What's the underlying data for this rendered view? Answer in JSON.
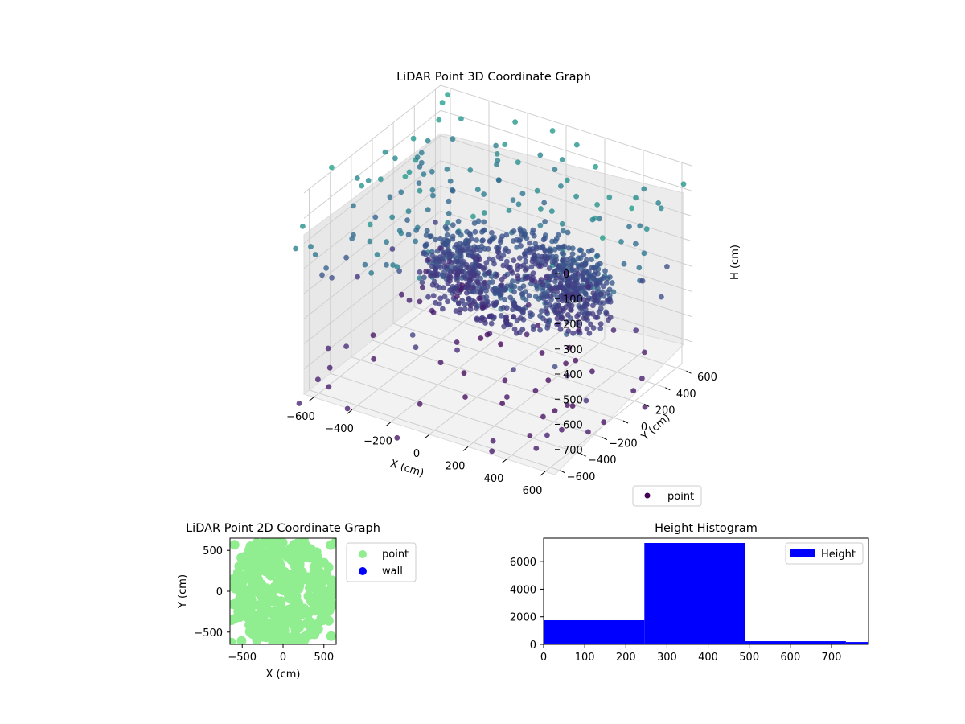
{
  "figure": {
    "chart3d_title": "LiDAR Point 3D Coordinate Graph",
    "chart2d_title": "LiDAR Point 2D Coordinate Graph",
    "hist_title": "Height Histogram"
  },
  "chart_data": [
    {
      "type": "scatter",
      "projection": "3d",
      "title": "LiDAR Point 3D Coordinate Graph",
      "xlabel": "X (cm)",
      "ylabel": "Y (cm)",
      "zlabel": "H (cm)",
      "xticks": [
        "−600",
        "−400",
        "−200",
        "0",
        "200",
        "400",
        "600"
      ],
      "yticks": [
        "−600",
        "−400",
        "−200",
        "0",
        "200",
        "400",
        "600"
      ],
      "zticks": [
        "0",
        "100",
        "200",
        "300",
        "400",
        "500",
        "600",
        "700"
      ],
      "zaxis_inverted": true,
      "colormap": "viridis",
      "legend": [
        "point"
      ],
      "legend_placement": "lower-right",
      "marker_color": "#440154",
      "series": [
        {
          "name": "point",
          "x": [],
          "y": [],
          "z": []
        }
      ]
    },
    {
      "type": "scatter",
      "title": "LiDAR Point 2D Coordinate Graph",
      "xlabel": "X (cm)",
      "ylabel": "Y (cm)",
      "xticks": [
        "−500",
        "0",
        "500"
      ],
      "yticks": [
        "500",
        "0",
        "−500"
      ],
      "xlim": [
        -650,
        650
      ],
      "ylim": [
        -650,
        650
      ],
      "legend_placement": "outside-upper-right",
      "series": [
        {
          "name": "point",
          "color": "#90ee90"
        },
        {
          "name": "wall",
          "color": "#0000ff"
        }
      ]
    },
    {
      "type": "bar",
      "title": "Height Histogram",
      "xticks": [
        "0",
        "100",
        "200",
        "300",
        "400",
        "500",
        "600",
        "700"
      ],
      "yticks": [
        "0",
        "2000",
        "4000",
        "6000"
      ],
      "xlim": [
        0,
        790
      ],
      "ylim": [
        0,
        7700
      ],
      "legend_placement": "upper-right",
      "series": [
        {
          "name": "Height",
          "color": "#0000ff",
          "bins": [
            {
              "start": 0,
              "end": 245,
              "count": 1750
            },
            {
              "start": 245,
              "end": 490,
              "count": 7350
            },
            {
              "start": 490,
              "end": 735,
              "count": 230
            },
            {
              "start": 735,
              "end": 980,
              "count": 170
            }
          ]
        }
      ]
    }
  ]
}
